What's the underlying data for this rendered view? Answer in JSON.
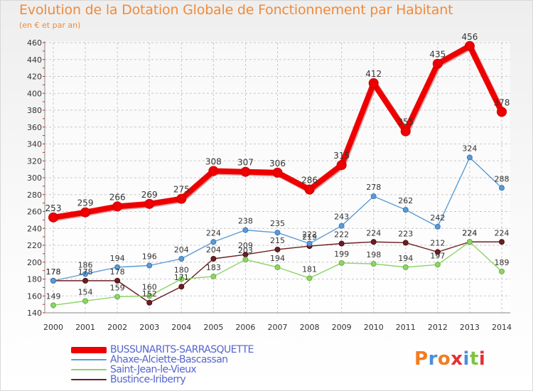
{
  "title": "Evolution de la Dotation Globale de Fonctionnement par Habitant",
  "subtitle": "(en € et par an)",
  "logo_text": "Proxiti",
  "colors": {
    "accent": "#f08a3a",
    "grid": "#c8c8c8",
    "axis": "#888888",
    "legend_text": "#5566cc",
    "logo": [
      "#f47b20",
      "#4a90d9",
      "#f47b20",
      "#e63030",
      "#4a90d9",
      "#7cc540",
      "#e63030"
    ]
  },
  "chart_data": {
    "type": "line",
    "title": "Evolution de la Dotation Globale de Fonctionnement par Habitant",
    "subtitle": "(en € et par an)",
    "xlabel": "",
    "ylabel": "",
    "ylim": [
      140,
      460
    ],
    "yticks": [
      140,
      160,
      180,
      200,
      220,
      240,
      260,
      280,
      300,
      320,
      340,
      360,
      380,
      400,
      420,
      440,
      460
    ],
    "grid": true,
    "legend_position": "bottom-left",
    "categories": [
      "2000",
      "2001",
      "2002",
      "2003",
      "2004",
      "2005",
      "2006",
      "2007",
      "2008",
      "2009",
      "2010",
      "2011",
      "2012",
      "2013",
      "2014"
    ],
    "series": [
      {
        "name": "BUSSUNARITS-SARRASQUETTE",
        "color": "#ee0000",
        "values": [
          253,
          259,
          266,
          269,
          275,
          308,
          307,
          306,
          286,
          315,
          412,
          355,
          435,
          456,
          378
        ]
      },
      {
        "name": "Ahaxe-Alciette-Bascassan",
        "color": "#5b9bd5",
        "values": [
          178,
          186,
          194,
          196,
          204,
          224,
          238,
          235,
          222,
          243,
          278,
          262,
          242,
          324,
          288
        ]
      },
      {
        "name": "Saint-Jean-le-Vieux",
        "color": "#8ed466",
        "values": [
          149,
          154,
          159,
          160,
          180,
          183,
          203,
          194,
          181,
          199,
          198,
          194,
          197,
          224,
          189
        ]
      },
      {
        "name": "Bustince-Iriberry",
        "color": "#6b1f23",
        "values": [
          178,
          178,
          178,
          152,
          171,
          204,
          209,
          215,
          219,
          222,
          224,
          223,
          212,
          224,
          224
        ]
      }
    ]
  }
}
